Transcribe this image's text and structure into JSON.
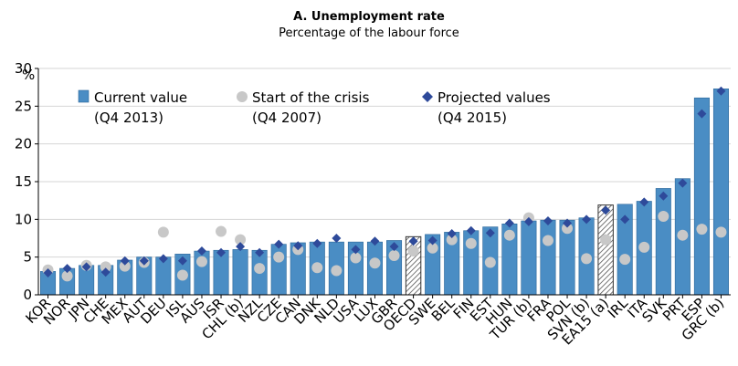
{
  "chart_data": {
    "type": "bar",
    "title": "A. Unemployment rate",
    "subtitle": "Percentage of the labour force",
    "ylabel": "%",
    "ylim": [
      0,
      30
    ],
    "yticks": [
      0,
      5,
      10,
      15,
      20,
      25,
      30
    ],
    "categories": [
      "KOR",
      "NOR",
      "JPN",
      "CHE",
      "MEX",
      "AUT",
      "DEU",
      "ISL",
      "AUS",
      "ISR",
      "CHL (b)",
      "NZL",
      "CZE",
      "CAN",
      "DNK",
      "NLD",
      "USA",
      "LUX",
      "GBR",
      "OECD",
      "SWE",
      "BEL",
      "FIN",
      "EST",
      "HUN",
      "TUR (b)",
      "FRA",
      "POL",
      "SVN (b)",
      "EA15 (a)",
      "IRL",
      "ITA",
      "SVK",
      "PRT",
      "ESP",
      "GRC (b)"
    ],
    "hatched_categories": [
      "OECD",
      "EA15 (a)"
    ],
    "legend": [
      {
        "name": "Current value",
        "sub": "(Q4 2013)",
        "marker": "bar"
      },
      {
        "name": "Start of the crisis",
        "sub": "(Q4 2007)",
        "marker": "circle"
      },
      {
        "name": "Projected values",
        "sub": "(Q4 2015)",
        "marker": "diamond"
      }
    ],
    "series": [
      {
        "name": "Current value (Q4 2013)",
        "type": "bar",
        "values": [
          3.1,
          3.5,
          3.9,
          3.9,
          4.6,
          5.0,
          5.0,
          5.4,
          5.8,
          5.9,
          6.0,
          5.9,
          6.7,
          6.9,
          7.0,
          7.0,
          7.0,
          7.0,
          7.2,
          7.7,
          8.0,
          8.3,
          8.5,
          9.0,
          9.4,
          9.8,
          9.9,
          9.9,
          10.2,
          11.9,
          12.0,
          12.4,
          14.1,
          15.4,
          26.1,
          27.3
        ]
      },
      {
        "name": "Start of the crisis (Q4 2007)",
        "type": "circle",
        "values": [
          3.3,
          2.5,
          3.9,
          3.7,
          3.8,
          4.3,
          8.3,
          2.6,
          4.4,
          8.4,
          7.3,
          3.5,
          5.0,
          6.0,
          3.6,
          3.2,
          4.9,
          4.2,
          5.2,
          5.8,
          6.2,
          7.3,
          6.8,
          4.3,
          7.9,
          10.2,
          7.2,
          8.8,
          4.8,
          7.3,
          4.7,
          6.3,
          10.4,
          7.9,
          8.7,
          8.3
        ]
      },
      {
        "name": "Projected values (Q4 2015)",
        "type": "diamond",
        "values": [
          2.9,
          3.5,
          3.7,
          3.0,
          4.5,
          4.5,
          4.8,
          4.5,
          5.8,
          5.6,
          6.4,
          5.6,
          6.7,
          6.5,
          6.8,
          7.5,
          6.0,
          7.1,
          6.4,
          7.1,
          7.2,
          8.1,
          8.5,
          8.2,
          9.5,
          9.7,
          9.8,
          9.5,
          10.0,
          11.2,
          10.0,
          12.3,
          13.1,
          14.8,
          24.0,
          27.0
        ]
      }
    ],
    "colors": {
      "bar": "#4a8dc4",
      "bar_edge": "#2c6699",
      "circle": "#c8c8c8",
      "diamond": "#2e4a9a",
      "grid": "#d6d6d6"
    }
  }
}
